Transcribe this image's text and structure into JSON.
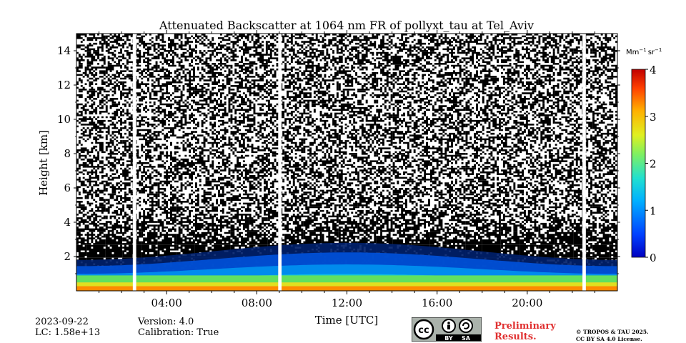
{
  "chart_data": {
    "type": "heatmap",
    "title": "Attenuated Backscatter at 1064 nm FR of pollyxt_tau at Tel_Aviv",
    "xlabel": "Time [UTC]",
    "ylabel": "Height [km]",
    "x_ticks": [
      "04:00",
      "08:00",
      "12:00",
      "16:00",
      "20:00"
    ],
    "x_tick_values": [
      4,
      8,
      12,
      16,
      20
    ],
    "xlim": [
      0,
      24
    ],
    "y_ticks": [
      "2",
      "4",
      "6",
      "8",
      "10",
      "12",
      "14"
    ],
    "y_tick_values": [
      2,
      4,
      6,
      8,
      10,
      12,
      14
    ],
    "ylim": [
      0,
      15
    ],
    "colorbar": {
      "unit_base1": "Mm",
      "unit_exp1": "−1",
      "unit_base2": "sr",
      "unit_exp2": "−1",
      "ticks": [
        "0",
        "1",
        "2",
        "3",
        "4"
      ],
      "tick_values": [
        0,
        1,
        2,
        3,
        4
      ],
      "range": [
        0,
        4
      ],
      "colormap": "jet"
    },
    "data_gaps_hours": [
      [
        2.5,
        2.65
      ],
      [
        8.95,
        9.1
      ],
      [
        22.45,
        22.6
      ]
    ],
    "aerosol_layer": {
      "surface_layer_top_km": 0.9,
      "boundary_layer_top_km": [
        1.8,
        2.8
      ],
      "peak_value": 4
    }
  },
  "footer": {
    "date": "2023-09-22",
    "lc": "LC: 1.58e+13",
    "version": "Version: 4.0",
    "calibration": "Calibration: True",
    "prelim_line1": "Preliminary",
    "prelim_line2": "Results.",
    "copyright_line1": "© TROPOS & TAU 2025.",
    "copyright_line2": "CC BY SA 4.0 License.",
    "license_badge_by": "BY",
    "license_badge_sa": "SA",
    "license_badge_cc": "cc"
  }
}
